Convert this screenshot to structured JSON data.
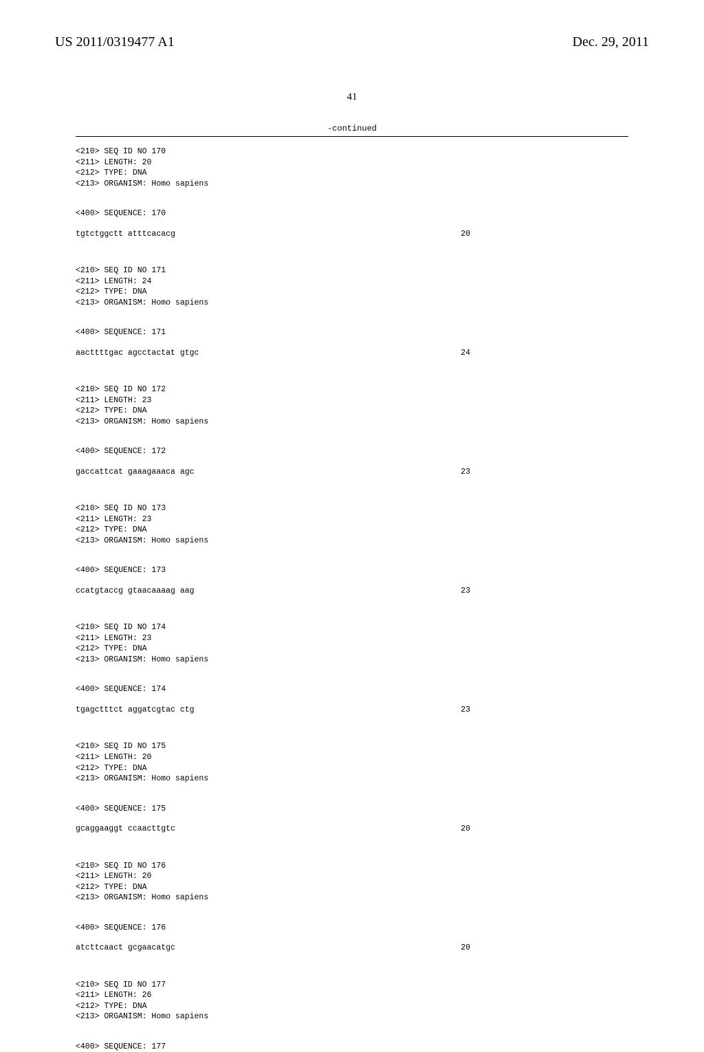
{
  "header": {
    "pub_number": "US 2011/0319477 A1",
    "pub_date": "Dec. 29, 2011"
  },
  "page_number": "41",
  "continued_label": "-continued",
  "sequences": [
    {
      "id_line": "<210> SEQ ID NO 170",
      "length_line": "<211> LENGTH: 20",
      "type_line": "<212> TYPE: DNA",
      "organism_line": "<213> ORGANISM: Homo sapiens",
      "seq_label": "<400> SEQUENCE: 170",
      "seq_text": "tgtctggctt atttcacacg",
      "seq_len": "20"
    },
    {
      "id_line": "<210> SEQ ID NO 171",
      "length_line": "<211> LENGTH: 24",
      "type_line": "<212> TYPE: DNA",
      "organism_line": "<213> ORGANISM: Homo sapiens",
      "seq_label": "<400> SEQUENCE: 171",
      "seq_text": "aacttttgac agcctactat gtgc",
      "seq_len": "24"
    },
    {
      "id_line": "<210> SEQ ID NO 172",
      "length_line": "<211> LENGTH: 23",
      "type_line": "<212> TYPE: DNA",
      "organism_line": "<213> ORGANISM: Homo sapiens",
      "seq_label": "<400> SEQUENCE: 172",
      "seq_text": "gaccattcat gaaagaaaca agc",
      "seq_len": "23"
    },
    {
      "id_line": "<210> SEQ ID NO 173",
      "length_line": "<211> LENGTH: 23",
      "type_line": "<212> TYPE: DNA",
      "organism_line": "<213> ORGANISM: Homo sapiens",
      "seq_label": "<400> SEQUENCE: 173",
      "seq_text": "ccatgtaccg gtaacaaaag aag",
      "seq_len": "23"
    },
    {
      "id_line": "<210> SEQ ID NO 174",
      "length_line": "<211> LENGTH: 23",
      "type_line": "<212> TYPE: DNA",
      "organism_line": "<213> ORGANISM: Homo sapiens",
      "seq_label": "<400> SEQUENCE: 174",
      "seq_text": "tgagctttct aggatcgtac ctg",
      "seq_len": "23"
    },
    {
      "id_line": "<210> SEQ ID NO 175",
      "length_line": "<211> LENGTH: 20",
      "type_line": "<212> TYPE: DNA",
      "organism_line": "<213> ORGANISM: Homo sapiens",
      "seq_label": "<400> SEQUENCE: 175",
      "seq_text": "gcaggaaggt ccaacttgtc",
      "seq_len": "20"
    },
    {
      "id_line": "<210> SEQ ID NO 176",
      "length_line": "<211> LENGTH: 20",
      "type_line": "<212> TYPE: DNA",
      "organism_line": "<213> ORGANISM: Homo sapiens",
      "seq_label": "<400> SEQUENCE: 176",
      "seq_text": "atcttcaact gcgaacatgc",
      "seq_len": "20"
    },
    {
      "id_line": "<210> SEQ ID NO 177",
      "length_line": "<211> LENGTH: 26",
      "type_line": "<212> TYPE: DNA",
      "organism_line": "<213> ORGANISM: Homo sapiens",
      "seq_label": "<400> SEQUENCE: 177",
      "seq_text": "",
      "seq_len": ""
    }
  ]
}
